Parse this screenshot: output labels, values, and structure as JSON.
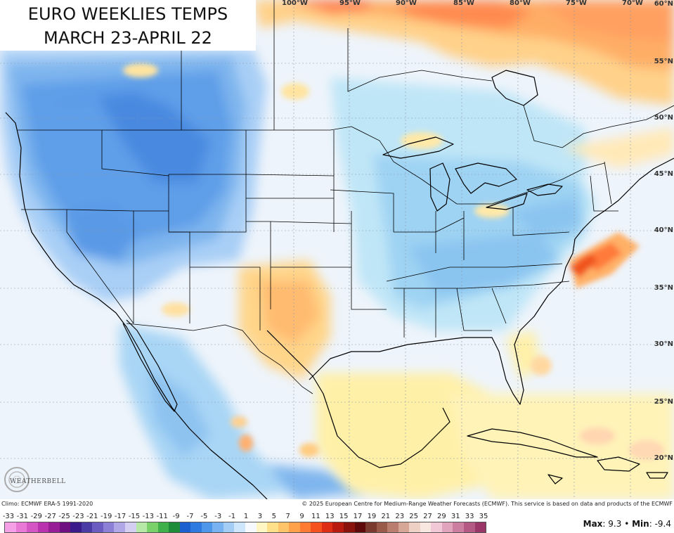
{
  "title": {
    "line1": "EURO WEEKLIES TEMPS",
    "line2": "MARCH 23-APRIL 22"
  },
  "longitude_labels": [
    "100°W",
    "95°W",
    "90°W",
    "85°W",
    "80°W",
    "75°W",
    "70°W"
  ],
  "latitude_labels": [
    "60°N",
    "55°N",
    "50°N",
    "45°N",
    "40°N",
    "35°N",
    "30°N",
    "25°N",
    "20°N"
  ],
  "footer": {
    "climo": "Climo: ECMWF ERA-5 1991-2020",
    "copyright": "© 2025 European Centre for Medium-Range Weather Forecasts (ECMWF). This service is based on data and products of the ECMWF",
    "max_label": "Max",
    "max_value": "9.3",
    "separator": "•",
    "min_label": "Min",
    "min_value": "-9.4"
  },
  "colorbar": {
    "ticks": [
      "-33",
      "-31",
      "-29",
      "-27",
      "-25",
      "-23",
      "-21",
      "-19",
      "-17",
      "-15",
      "-13",
      "-11",
      "-9",
      "-7",
      "-5",
      "-3",
      "-1",
      "1",
      "3",
      "5",
      "7",
      "9",
      "11",
      "13",
      "15",
      "17",
      "19",
      "21",
      "23",
      "25",
      "27",
      "29",
      "31",
      "33",
      "35"
    ],
    "colors": [
      "#f5a0e6",
      "#e87ad6",
      "#d455c4",
      "#b833ad",
      "#961d96",
      "#6e1080",
      "#3b1a8c",
      "#4a3aa6",
      "#6a5cc0",
      "#8c80d6",
      "#b0a8e6",
      "#d4cef2",
      "#b6e8a8",
      "#7ad16a",
      "#3fb04a",
      "#1f8c3a",
      "#1c5fcf",
      "#2f7ae0",
      "#4e96ea",
      "#79b2f0",
      "#a3cdf5",
      "#cde6fb",
      "#f6fafe",
      "#fff6c4",
      "#ffe08a",
      "#ffc36a",
      "#ffa04a",
      "#ff7a32",
      "#f5511f",
      "#dd2d14",
      "#b81a10",
      "#8a120c",
      "#5e0a0a",
      "#7a3a2e",
      "#9a5a4a",
      "#ba7e6e",
      "#d6a696",
      "#eed0c4",
      "#f8e6e0",
      "#f0c8d6",
      "#e0a4bc",
      "#cc7ea0",
      "#b45884",
      "#9a3668"
    ],
    "brand": "WEATHERBELL"
  }
}
